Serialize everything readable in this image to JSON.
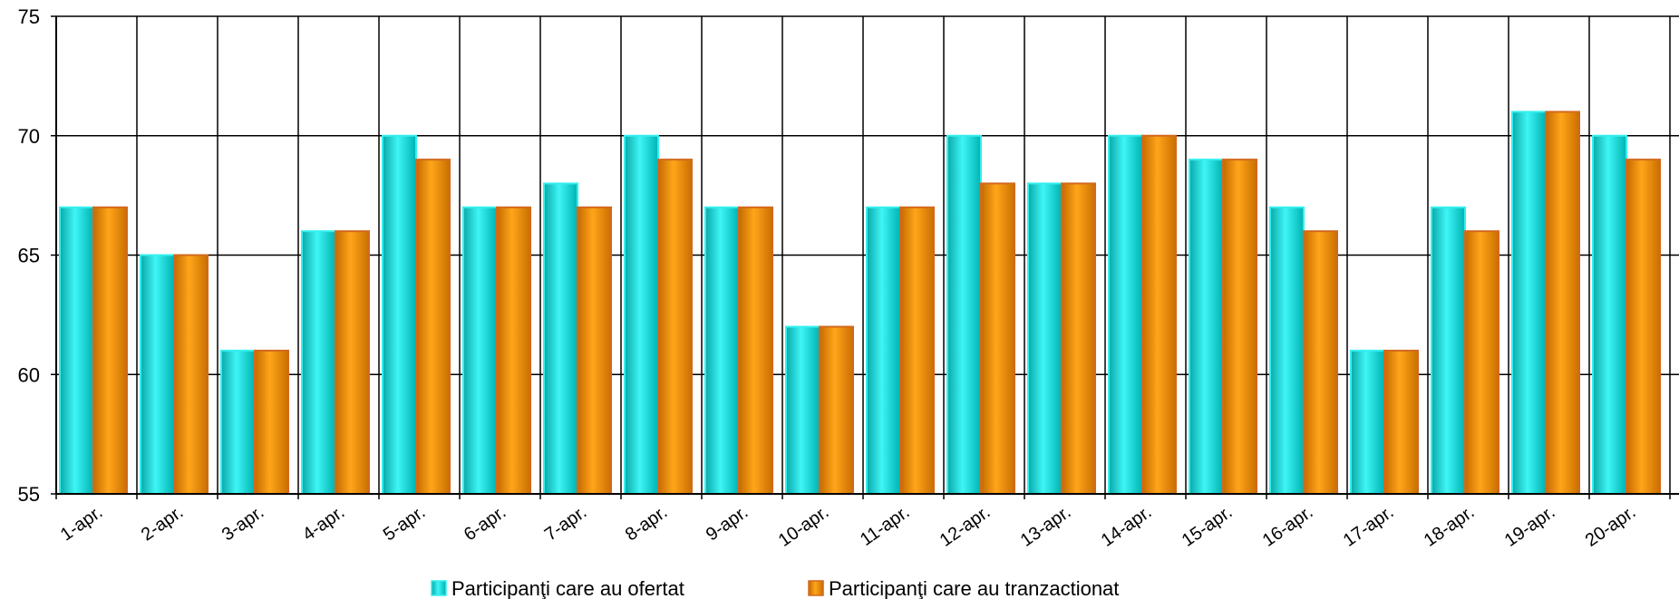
{
  "chart_data": {
    "type": "bar",
    "categories": [
      "1-apr.",
      "2-apr.",
      "3-apr.",
      "4-apr.",
      "5-apr.",
      "6-apr.",
      "7-apr.",
      "8-apr.",
      "9-apr.",
      "10-apr.",
      "11-apr.",
      "12-apr.",
      "13-apr.",
      "14-apr.",
      "15-apr.",
      "16-apr.",
      "17-apr.",
      "18-apr.",
      "19-apr.",
      "20-apr."
    ],
    "series": [
      {
        "name": "Participanţi care au ofertat",
        "color": "#00e5e5",
        "values": [
          67,
          65,
          61,
          66,
          70,
          67,
          68,
          70,
          67,
          62,
          67,
          70,
          68,
          70,
          69,
          67,
          61,
          67,
          71,
          70
        ]
      },
      {
        "name": "Participanţi care au tranzactionat",
        "color": "#ff9900",
        "values": [
          67,
          65,
          61,
          66,
          69,
          67,
          67,
          69,
          67,
          62,
          67,
          68,
          68,
          70,
          69,
          66,
          61,
          66,
          71,
          69
        ]
      }
    ],
    "ylim": [
      55,
      75
    ],
    "yticks": [
      55,
      60,
      65,
      70,
      75
    ],
    "grid": true,
    "legend_position": "bottom"
  }
}
